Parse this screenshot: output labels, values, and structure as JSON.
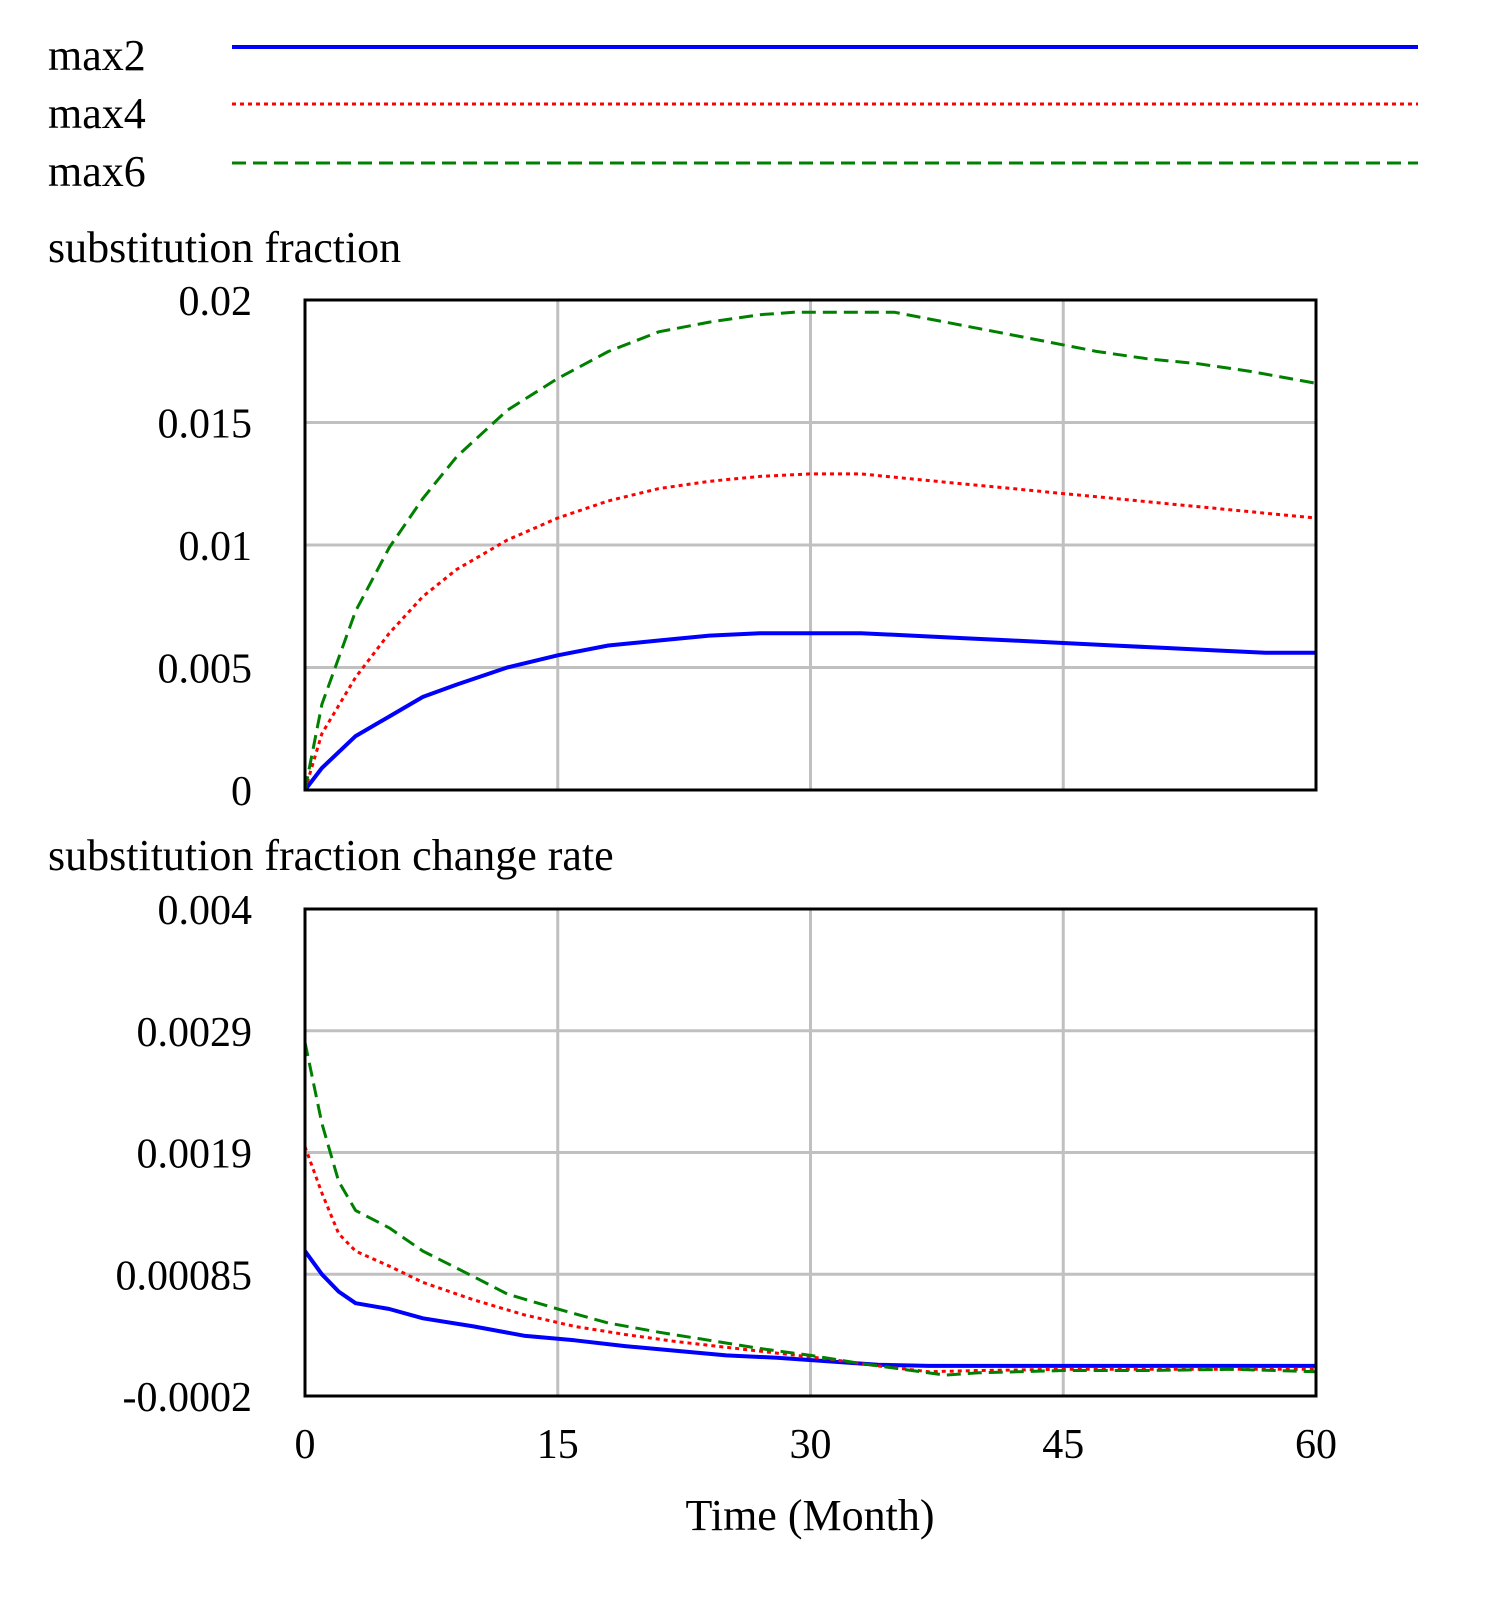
{
  "legend": [
    {
      "name": "max2",
      "color": "#0000ff",
      "dash": "solid"
    },
    {
      "name": "max4",
      "color": "#ff0000",
      "dash": "dotted"
    },
    {
      "name": "max6",
      "color": "#008000",
      "dash": "dashed"
    }
  ],
  "x_axis": {
    "title": "Time (Month)",
    "ticks": [
      "0",
      "15",
      "30",
      "45",
      "60"
    ],
    "range": [
      0,
      60
    ]
  },
  "chart_data": [
    {
      "type": "line",
      "title": "substitution fraction",
      "xlabel": "Time (Month)",
      "ylabel": "",
      "xlim": [
        0,
        60
      ],
      "ylim": [
        0,
        0.02
      ],
      "y_ticks": [
        {
          "value": 0,
          "label": "0"
        },
        {
          "value": 0.005,
          "label": "0.005"
        },
        {
          "value": 0.01,
          "label": "0.01"
        },
        {
          "value": 0.015,
          "label": "0.015"
        },
        {
          "value": 0.02,
          "label": "0.02"
        }
      ],
      "grid": true,
      "series": [
        {
          "name": "max2",
          "color": "#0000ff",
          "dash": "solid",
          "x": [
            0,
            1,
            3,
            5,
            7,
            9,
            12,
            15,
            18,
            21,
            24,
            27,
            30,
            33,
            36,
            39,
            42,
            45,
            48,
            51,
            54,
            57,
            60
          ],
          "y": [
            0,
            0.0009,
            0.0022,
            0.003,
            0.0038,
            0.0043,
            0.005,
            0.0055,
            0.0059,
            0.0061,
            0.0063,
            0.0064,
            0.0064,
            0.0064,
            0.0063,
            0.0062,
            0.0061,
            0.006,
            0.0059,
            0.0058,
            0.0057,
            0.0056,
            0.0056
          ]
        },
        {
          "name": "max4",
          "color": "#ff0000",
          "dash": "dotted",
          "x": [
            0,
            1,
            3,
            5,
            7,
            9,
            12,
            15,
            18,
            21,
            24,
            27,
            30,
            33,
            36,
            39,
            42,
            45,
            48,
            51,
            54,
            57,
            60
          ],
          "y": [
            0,
            0.0023,
            0.0046,
            0.0064,
            0.0079,
            0.009,
            0.0102,
            0.0111,
            0.0118,
            0.0123,
            0.0126,
            0.0128,
            0.0129,
            0.0129,
            0.0127,
            0.0125,
            0.0123,
            0.0121,
            0.0119,
            0.0117,
            0.0115,
            0.0113,
            0.0111
          ]
        },
        {
          "name": "max6",
          "color": "#008000",
          "dash": "dashed",
          "x": [
            0,
            1,
            3,
            5,
            7,
            9,
            12,
            15,
            18,
            21,
            24,
            27,
            29,
            32,
            35,
            38,
            41,
            44,
            47,
            50,
            53,
            56,
            60
          ],
          "y": [
            0,
            0.0035,
            0.0073,
            0.0099,
            0.0119,
            0.0136,
            0.0155,
            0.0168,
            0.0179,
            0.0187,
            0.0191,
            0.0194,
            0.0195,
            0.0195,
            0.0195,
            0.0191,
            0.0187,
            0.0183,
            0.0179,
            0.0176,
            0.0174,
            0.0171,
            0.0166
          ]
        }
      ]
    },
    {
      "type": "line",
      "title": "substitution fraction change rate",
      "xlabel": "Time (Month)",
      "ylabel": "",
      "xlim": [
        0,
        60
      ],
      "ylim": [
        -0.0002,
        0.004
      ],
      "y_ticks": [
        {
          "value": -0.0002,
          "label": "-0.0002"
        },
        {
          "value": 0.00085,
          "label": "0.00085"
        },
        {
          "value": 0.0019,
          "label": "0.0019"
        },
        {
          "value": 0.0029,
          "label": "0.0029"
        },
        {
          "value": 0.004,
          "label": "0.004"
        }
      ],
      "grid": true,
      "series": [
        {
          "name": "max2",
          "color": "#0000ff",
          "dash": "solid",
          "x": [
            0,
            1,
            2,
            3,
            5,
            7,
            10,
            13,
            16,
            19,
            22,
            25,
            28,
            31,
            34,
            37,
            40,
            45,
            50,
            55,
            60
          ],
          "y": [
            0.00105,
            0.00085,
            0.0007,
            0.0006,
            0.00055,
            0.00047,
            0.0004,
            0.00032,
            0.00028,
            0.00023,
            0.00019,
            0.00015,
            0.00013,
            0.0001,
            7e-05,
            6e-05,
            6e-05,
            6e-05,
            6e-05,
            6e-05,
            6e-05
          ]
        },
        {
          "name": "max4",
          "color": "#ff0000",
          "dash": "dotted",
          "x": [
            0,
            1,
            2,
            3,
            5,
            7,
            10,
            13,
            16,
            19,
            22,
            25,
            28,
            31,
            34,
            37,
            40,
            45,
            50,
            55,
            60
          ],
          "y": [
            0.00195,
            0.00155,
            0.0012,
            0.00105,
            0.00092,
            0.00078,
            0.00063,
            0.0005,
            0.0004,
            0.00033,
            0.00027,
            0.00022,
            0.00017,
            0.00012,
            6e-05,
            1e-05,
            2e-05,
            3e-05,
            3e-05,
            3e-05,
            3e-05
          ]
        },
        {
          "name": "max6",
          "color": "#008000",
          "dash": "dashed",
          "x": [
            0,
            1,
            2,
            3,
            5,
            7,
            10,
            12,
            15,
            18,
            21,
            24,
            27,
            30,
            33,
            36,
            38,
            40,
            45,
            50,
            55,
            60
          ],
          "y": [
            0.00285,
            0.00215,
            0.00165,
            0.0014,
            0.00125,
            0.00105,
            0.00083,
            0.00068,
            0.00055,
            0.00043,
            0.00035,
            0.00028,
            0.00021,
            0.00015,
            8e-05,
            2e-05,
            -2e-05,
            0.0,
            2e-05,
            2e-05,
            3e-05,
            1e-05
          ]
        }
      ]
    }
  ]
}
